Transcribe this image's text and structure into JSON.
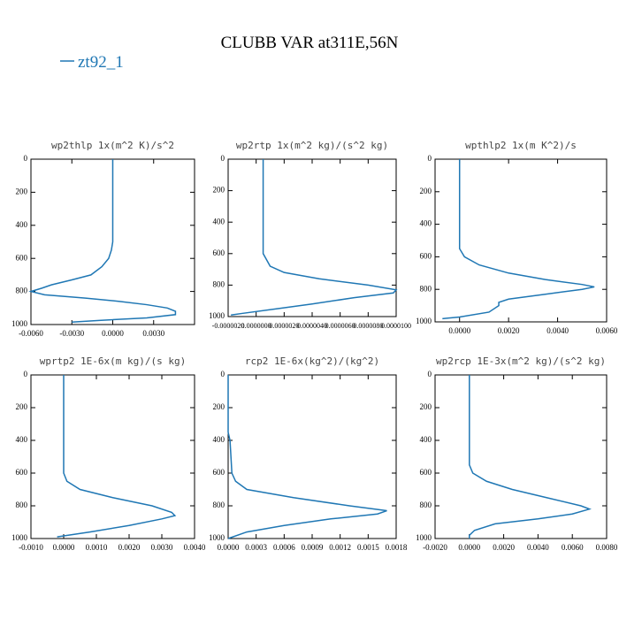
{
  "title": "CLUBB VAR at311E,56N",
  "chart_data": [
    {
      "type": "line",
      "title": "wp2thlp  1x(m^2 K)/s^2",
      "xlim": [
        -0.006,
        0.006
      ],
      "xticks": [
        {
          "value": -0.006,
          "label": "-0.0060"
        },
        {
          "value": -0.003,
          "label": "-0.0030"
        },
        {
          "value": 0,
          "label": "0.0000"
        },
        {
          "value": 0.003,
          "label": "0.0030"
        }
      ],
      "ylim": [
        1000,
        0
      ],
      "yticks": [
        0,
        200,
        400,
        600,
        800,
        1000
      ],
      "y": [
        0,
        100,
        200,
        300,
        400,
        500,
        550,
        600,
        650,
        700,
        730,
        760,
        780,
        800,
        820,
        840,
        860,
        880,
        900,
        920,
        940,
        960,
        975,
        985
      ],
      "series": [
        {
          "name": "zt92_1",
          "color": "#1f77b4",
          "values": [
            0,
            0,
            0,
            0,
            0,
            0,
            -0.0001,
            -0.0003,
            -0.0008,
            -0.0016,
            -0.003,
            -0.0045,
            -0.0052,
            -0.006,
            -0.005,
            -0.002,
            0.0005,
            0.0025,
            0.004,
            0.0046,
            0.0046,
            0.0025,
            -0.001,
            -0.003
          ]
        }
      ]
    },
    {
      "type": "line",
      "title": "wp2rtp  1x(m^2 kg)/(s^2 kg)",
      "xlim": [
        -2e-06,
        1e-05
      ],
      "xticks": [
        {
          "value": -2e-06,
          "label": "-0.0000020"
        },
        {
          "value": 0,
          "label": "0.0000000"
        },
        {
          "value": 2e-06,
          "label": "0.0000020"
        },
        {
          "value": 4e-06,
          "label": "0.0000040"
        },
        {
          "value": 6e-06,
          "label": "0.0000060"
        },
        {
          "value": 8e-06,
          "label": "0.0000080"
        },
        {
          "value": 1e-05,
          "label": "0.0000100"
        }
      ],
      "ylim": [
        1000,
        0
      ],
      "yticks": [
        0,
        200,
        400,
        600,
        800,
        1000
      ],
      "y": [
        0,
        100,
        200,
        300,
        400,
        500,
        600,
        680,
        720,
        760,
        800,
        830,
        850,
        880,
        920,
        950,
        980,
        990
      ],
      "series": [
        {
          "name": "zt92_1",
          "color": "#1f77b4",
          "values": [
            5e-07,
            5e-07,
            5e-07,
            5e-07,
            5e-07,
            5e-07,
            5e-07,
            1e-06,
            2e-06,
            4.5e-06,
            8e-06,
            1e-05,
            9.8e-06,
            7e-06,
            4e-06,
            1.5e-06,
            -1e-06,
            -1.8e-06
          ]
        }
      ]
    },
    {
      "type": "line",
      "title": "wpthlp2  1x(m K^2)/s",
      "xlim": [
        -0.001,
        0.006
      ],
      "xticks": [
        {
          "value": 0,
          "label": "0.0000"
        },
        {
          "value": 0.002,
          "label": "0.0020"
        },
        {
          "value": 0.004,
          "label": "0.0040"
        },
        {
          "value": 0.006,
          "label": "0.0060"
        }
      ],
      "ylim": [
        1000,
        0
      ],
      "yticks": [
        0,
        200,
        400,
        600,
        800,
        1000
      ],
      "y": [
        0,
        100,
        200,
        300,
        400,
        500,
        550,
        600,
        650,
        700,
        740,
        770,
        785,
        800,
        830,
        860,
        880,
        900,
        940,
        970,
        980
      ],
      "series": [
        {
          "name": "zt92_1",
          "color": "#1f77b4",
          "values": [
            0,
            0,
            0,
            0,
            0,
            0,
            0,
            0.0002,
            0.0008,
            0.002,
            0.0035,
            0.005,
            0.0055,
            0.005,
            0.0035,
            0.002,
            0.0016,
            0.0016,
            0.0012,
            0,
            -0.0007
          ]
        }
      ]
    },
    {
      "type": "line",
      "title": "wprtp2  1E-6x(m kg)/(s kg)",
      "xlim": [
        -0.001,
        0.004
      ],
      "xticks": [
        {
          "value": -0.001,
          "label": "-0.0010"
        },
        {
          "value": 0,
          "label": "0.0000"
        },
        {
          "value": 0.001,
          "label": "0.0010"
        },
        {
          "value": 0.002,
          "label": "0.0020"
        },
        {
          "value": 0.003,
          "label": "0.0030"
        },
        {
          "value": 0.004,
          "label": "0.0040"
        }
      ],
      "ylim": [
        1000,
        0
      ],
      "yticks": [
        0,
        200,
        400,
        600,
        800,
        1000
      ],
      "y": [
        0,
        100,
        200,
        300,
        400,
        500,
        600,
        650,
        700,
        750,
        800,
        840,
        860,
        880,
        920,
        960,
        990
      ],
      "series": [
        {
          "name": "zt92_1",
          "color": "#1f77b4",
          "values": [
            0,
            0,
            0,
            0,
            0,
            0,
            0,
            0.0001,
            0.0005,
            0.0015,
            0.0027,
            0.0033,
            0.0034,
            0.003,
            0.002,
            0.0008,
            -0.0002
          ]
        }
      ]
    },
    {
      "type": "line",
      "title": "rcp2  1E-6x(kg^2)/(kg^2)",
      "xlim": [
        0,
        0.0018
      ],
      "xticks": [
        {
          "value": 0,
          "label": "0.0000"
        },
        {
          "value": 0.0003,
          "label": "0.0003"
        },
        {
          "value": 0.0006,
          "label": "0.0006"
        },
        {
          "value": 0.0009,
          "label": "0.0009"
        },
        {
          "value": 0.0012,
          "label": "0.0012"
        },
        {
          "value": 0.0015,
          "label": "0.0015"
        },
        {
          "value": 0.0018,
          "label": "0.0018"
        }
      ],
      "ylim": [
        1000,
        0
      ],
      "yticks": [
        0,
        200,
        400,
        600,
        800,
        1000
      ],
      "y": [
        0,
        100,
        200,
        300,
        350,
        400,
        500,
        600,
        650,
        700,
        750,
        800,
        830,
        850,
        880,
        920,
        960,
        1000
      ],
      "series": [
        {
          "name": "zt92_1",
          "color": "#1f77b4",
          "values": [
            0,
            0,
            0,
            0,
            0,
            2e-05,
            3e-05,
            4e-05,
            8e-05,
            0.0002,
            0.0007,
            0.0013,
            0.0017,
            0.0016,
            0.0011,
            0.0006,
            0.0002,
            0
          ]
        }
      ]
    },
    {
      "type": "line",
      "title": "wp2rcp  1E-3x(m^2 kg)/(s^2 kg)",
      "xlim": [
        -0.002,
        0.008
      ],
      "xticks": [
        {
          "value": -0.002,
          "label": "-0.0020"
        },
        {
          "value": 0,
          "label": "0.0000"
        },
        {
          "value": 0.002,
          "label": "0.0020"
        },
        {
          "value": 0.004,
          "label": "0.0040"
        },
        {
          "value": 0.006,
          "label": "0.0060"
        },
        {
          "value": 0.008,
          "label": "0.0080"
        }
      ],
      "ylim": [
        1000,
        0
      ],
      "yticks": [
        0,
        200,
        400,
        600,
        800,
        1000
      ],
      "y": [
        0,
        100,
        200,
        300,
        400,
        500,
        550,
        600,
        650,
        700,
        750,
        800,
        820,
        850,
        880,
        910,
        950,
        980,
        1000
      ],
      "series": [
        {
          "name": "zt92_1",
          "color": "#1f77b4",
          "values": [
            0,
            0,
            0,
            0,
            0,
            0,
            0,
            0.0002,
            0.001,
            0.0025,
            0.0045,
            0.0065,
            0.007,
            0.006,
            0.004,
            0.0015,
            0.0003,
            0,
            0
          ]
        }
      ]
    }
  ]
}
